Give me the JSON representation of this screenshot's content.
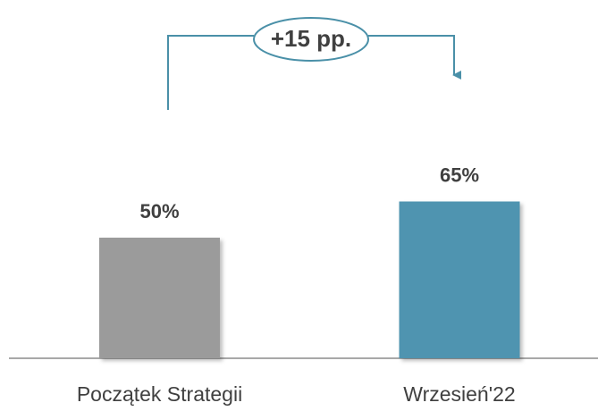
{
  "chart_data": {
    "type": "bar",
    "categories": [
      "Początek Strategii",
      "Wrzesień'22"
    ],
    "values": [
      50,
      65
    ],
    "value_labels": [
      "50%",
      "65%"
    ],
    "colors": [
      "#9b9b9b",
      "#4f94b0"
    ],
    "annotation": "+15 pp."
  }
}
